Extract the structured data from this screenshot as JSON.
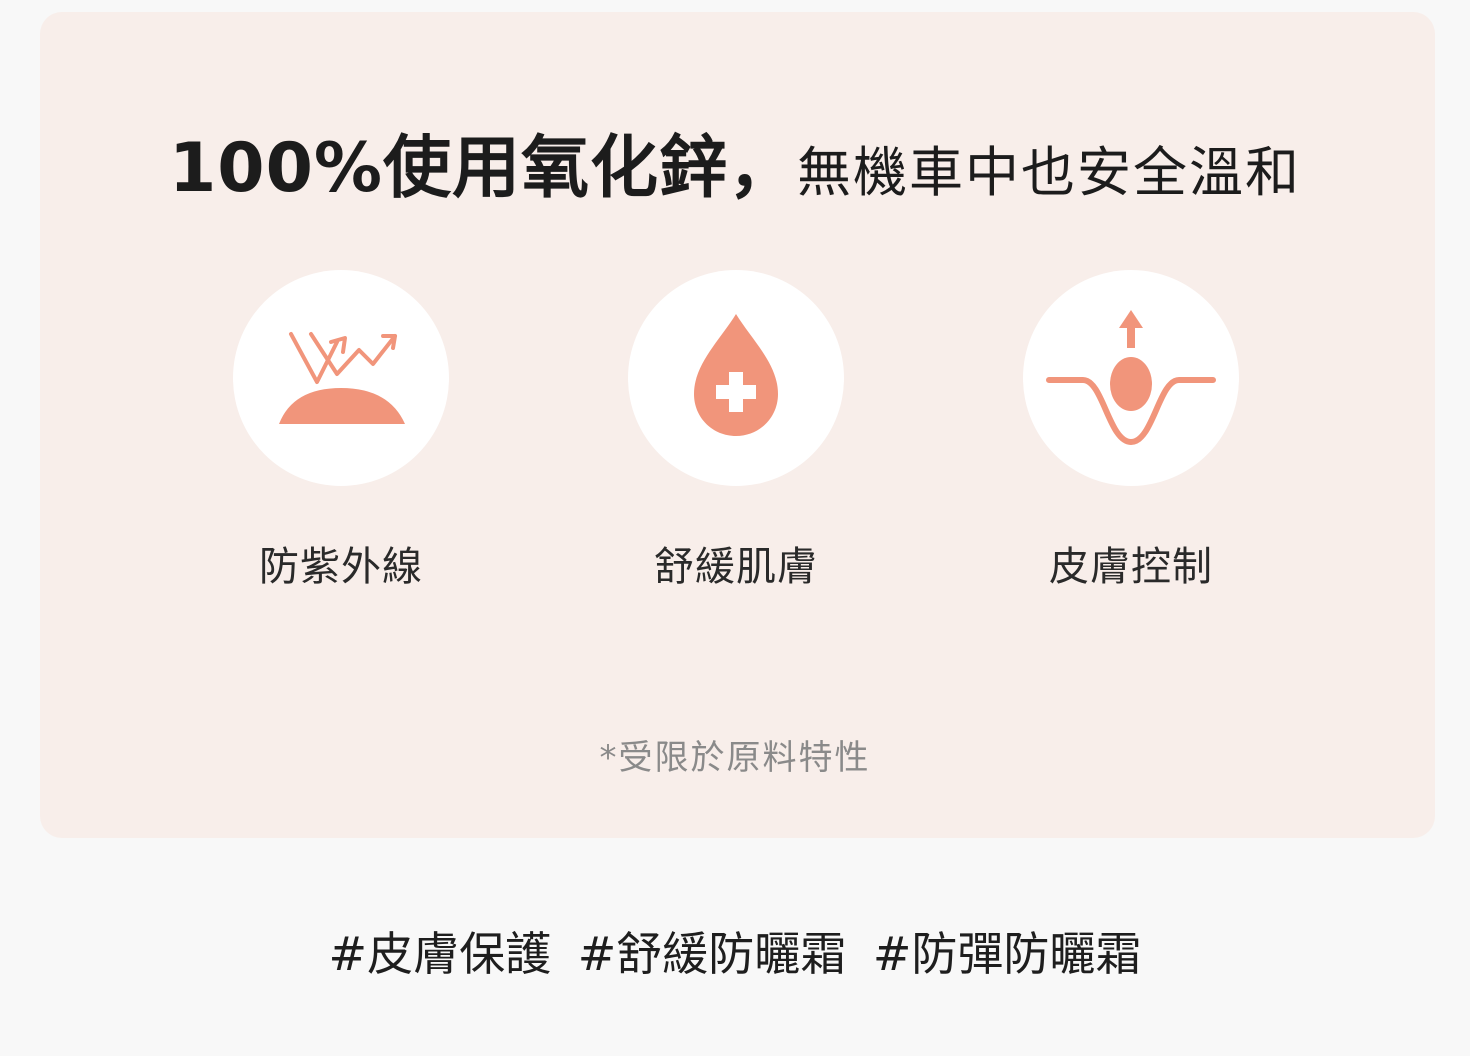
{
  "headline": {
    "bold": "100%使用氧化鋅，",
    "light": "無機車中也安全溫和"
  },
  "features": [
    {
      "icon": "uv-reflect-icon",
      "label": "防紫外線"
    },
    {
      "icon": "medical-drop-icon",
      "label": "舒緩肌膚"
    },
    {
      "icon": "skin-lift-icon",
      "label": "皮膚控制"
    }
  ],
  "note": "*受限於原料特性",
  "tags": [
    "#皮膚保護",
    "#舒緩防曬霜",
    "#防彈防曬霜"
  ],
  "colors": {
    "panel": "#f8eeea",
    "accent": "#f1957b",
    "text": "#1c1c1c",
    "note": "#8a8a8a"
  }
}
